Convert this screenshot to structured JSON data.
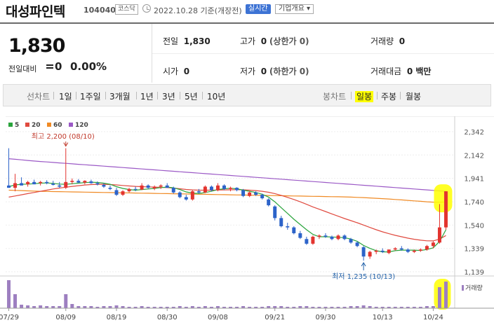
{
  "header": {
    "stock_name": "대성파인텍",
    "stock_code": "104040",
    "market": "코스닥",
    "date_text": "2022.10.28 기준(개장전)",
    "live_label": "실시간",
    "company_label": "기업개요 ▾"
  },
  "quote": {
    "price": "1,830",
    "compare_label": "전일대비",
    "compare_value": "0",
    "compare_pct": "0.00%"
  },
  "stats": {
    "prev_label": "전일",
    "prev_value": "1,830",
    "high_label": "고가",
    "high_value": "0",
    "high_note": "(상한가 0)",
    "volume_label": "거래량",
    "volume_value": "0",
    "open_label": "시가",
    "open_value": "0",
    "low_label": "저가",
    "low_value": "0",
    "low_note": "(하한가 0)",
    "amount_label": "거래대금",
    "amount_value": "0 백만"
  },
  "toolbar": {
    "line_chart_label": "선차트",
    "periods": [
      "1일",
      "1주일",
      "3개월",
      "1년",
      "3년",
      "5년",
      "10년"
    ],
    "candle_label": "봉차트",
    "candle_periods": [
      "일봉",
      "주봉",
      "월봉"
    ],
    "active_candle": "일봉"
  },
  "colors": {
    "up": "#e3342f",
    "down": "#2c63c9",
    "ma5": "#2aa43c",
    "ma20": "#e04a3f",
    "ma60": "#f08a24",
    "ma120": "#9b59c6",
    "highlight": "#ffff00",
    "volume": "#9d7fc0"
  },
  "chart_data": {
    "type": "candlestick",
    "legend": [
      "5",
      "20",
      "60",
      "120"
    ],
    "y_ticks": [
      "2,342",
      "2,142",
      "1,941",
      "1,740",
      "1,540",
      "1,339",
      "1,139"
    ],
    "x_ticks": [
      "07/29",
      "08/09",
      "08/19",
      "08/30",
      "09/08",
      "09/21",
      "09/30",
      "10/13",
      "10/24"
    ],
    "ylim": [
      1139,
      2342
    ],
    "high_annotation": "최고 2,200 (08/10)",
    "low_annotation": "최저 1,235 (10/13)",
    "volume_label": "거래량",
    "candles": [
      [
        1880,
        2200,
        1860,
        1860
      ],
      [
        1860,
        1980,
        1830,
        1900
      ],
      [
        1900,
        1950,
        1880,
        1880
      ],
      [
        1890,
        1920,
        1870,
        1910
      ],
      [
        1910,
        1930,
        1890,
        1890
      ],
      [
        1900,
        1920,
        1880,
        1910
      ],
      [
        1910,
        1925,
        1890,
        1900
      ],
      [
        1895,
        1920,
        1880,
        1885
      ],
      [
        1880,
        1910,
        1860,
        1870
      ],
      [
        1860,
        2200,
        1850,
        1910
      ],
      [
        1910,
        1940,
        1890,
        1920
      ],
      [
        1920,
        1935,
        1900,
        1905
      ],
      [
        1905,
        1925,
        1890,
        1920
      ],
      [
        1915,
        1930,
        1895,
        1900
      ],
      [
        1900,
        1915,
        1880,
        1890
      ],
      [
        1885,
        1900,
        1860,
        1870
      ],
      [
        1860,
        1880,
        1840,
        1850
      ],
      [
        1840,
        1860,
        1790,
        1800
      ],
      [
        1800,
        1840,
        1790,
        1830
      ],
      [
        1830,
        1860,
        1820,
        1850
      ],
      [
        1850,
        1870,
        1830,
        1845
      ],
      [
        1845,
        1900,
        1840,
        1880
      ],
      [
        1880,
        1890,
        1850,
        1860
      ],
      [
        1855,
        1880,
        1840,
        1870
      ],
      [
        1870,
        1890,
        1850,
        1880
      ],
      [
        1880,
        1900,
        1860,
        1860
      ],
      [
        1860,
        1870,
        1810,
        1820
      ],
      [
        1820,
        1830,
        1770,
        1780
      ],
      [
        1780,
        1800,
        1750,
        1760
      ],
      [
        1760,
        1840,
        1750,
        1830
      ],
      [
        1830,
        1850,
        1810,
        1820
      ],
      [
        1820,
        1880,
        1815,
        1870
      ],
      [
        1870,
        1880,
        1830,
        1840
      ],
      [
        1840,
        1900,
        1830,
        1880
      ],
      [
        1880,
        1890,
        1840,
        1850
      ],
      [
        1850,
        1870,
        1830,
        1860
      ],
      [
        1860,
        1865,
        1830,
        1840
      ],
      [
        1840,
        1850,
        1780,
        1790
      ],
      [
        1790,
        1830,
        1780,
        1820
      ],
      [
        1820,
        1830,
        1790,
        1800
      ],
      [
        1800,
        1810,
        1760,
        1770
      ],
      [
        1760,
        1770,
        1700,
        1710
      ],
      [
        1700,
        1710,
        1580,
        1600
      ],
      [
        1600,
        1620,
        1520,
        1530
      ],
      [
        1530,
        1560,
        1500,
        1520
      ],
      [
        1520,
        1530,
        1460,
        1470
      ],
      [
        1470,
        1490,
        1420,
        1430
      ],
      [
        1420,
        1440,
        1370,
        1380
      ],
      [
        1380,
        1450,
        1370,
        1440
      ],
      [
        1440,
        1460,
        1420,
        1450
      ],
      [
        1450,
        1470,
        1430,
        1440
      ],
      [
        1440,
        1450,
        1410,
        1420
      ],
      [
        1420,
        1460,
        1410,
        1450
      ],
      [
        1450,
        1460,
        1410,
        1420
      ],
      [
        1420,
        1430,
        1380,
        1390
      ],
      [
        1390,
        1400,
        1350,
        1360
      ],
      [
        1350,
        1360,
        1235,
        1270
      ],
      [
        1270,
        1320,
        1250,
        1310
      ],
      [
        1310,
        1330,
        1290,
        1320
      ],
      [
        1320,
        1340,
        1300,
        1310
      ],
      [
        1300,
        1330,
        1290,
        1330
      ],
      [
        1330,
        1350,
        1320,
        1340
      ],
      [
        1340,
        1360,
        1320,
        1330
      ],
      [
        1330,
        1340,
        1300,
        1310
      ],
      [
        1310,
        1330,
        1300,
        1320
      ],
      [
        1320,
        1340,
        1310,
        1330
      ],
      [
        1330,
        1370,
        1320,
        1360
      ],
      [
        1360,
        1400,
        1340,
        1390
      ],
      [
        1390,
        1720,
        1380,
        1520
      ],
      [
        1520,
        1830,
        1500,
        1830
      ]
    ],
    "ma5": [
      1870,
      1885,
      1890,
      1892,
      1895,
      1900,
      1902,
      1898,
      1892,
      1890,
      1895,
      1900,
      1905,
      1908,
      1906,
      1900,
      1890,
      1870,
      1855,
      1845,
      1840,
      1845,
      1850,
      1855,
      1862,
      1866,
      1860,
      1845,
      1825,
      1815,
      1810,
      1820,
      1830,
      1845,
      1852,
      1856,
      1852,
      1840,
      1830,
      1820,
      1805,
      1780,
      1740,
      1690,
      1640,
      1590,
      1545,
      1500,
      1460,
      1440,
      1440,
      1438,
      1435,
      1432,
      1420,
      1400,
      1365,
      1340,
      1320,
      1310,
      1310,
      1320,
      1325,
      1325,
      1325,
      1322,
      1330,
      1345,
      1400,
      1500
    ],
    "ma20": [
      1780,
      1790,
      1800,
      1810,
      1820,
      1830,
      1840,
      1850,
      1858,
      1865,
      1872,
      1878,
      1884,
      1888,
      1890,
      1890,
      1888,
      1885,
      1880,
      1876,
      1872,
      1870,
      1868,
      1866,
      1864,
      1862,
      1858,
      1852,
      1846,
      1842,
      1840,
      1840,
      1840,
      1841,
      1842,
      1843,
      1844,
      1843,
      1840,
      1836,
      1830,
      1822,
      1810,
      1795,
      1778,
      1760,
      1740,
      1718,
      1696,
      1676,
      1656,
      1636,
      1616,
      1596,
      1578,
      1560,
      1540,
      1520,
      1500,
      1482,
      1466,
      1452,
      1440,
      1428,
      1418,
      1410,
      1405,
      1404,
      1420,
      1450
    ],
    "ma60": [
      1840,
      1838,
      1836,
      1834,
      1832,
      1830,
      1829,
      1828,
      1827,
      1826,
      1825,
      1824,
      1823,
      1822,
      1821,
      1820,
      1819,
      1818,
      1817,
      1816,
      1815,
      1814,
      1813,
      1812,
      1811,
      1810,
      1809,
      1808,
      1807,
      1806,
      1805,
      1804,
      1803,
      1802,
      1801,
      1800,
      1799,
      1798,
      1797,
      1796,
      1795,
      1794,
      1793,
      1792,
      1791,
      1790,
      1789,
      1788,
      1787,
      1786,
      1785,
      1784,
      1783,
      1782,
      1780,
      1778,
      1776,
      1773,
      1770,
      1767,
      1764,
      1760,
      1756,
      1752,
      1748,
      1744,
      1740,
      1737,
      1736,
      1738
    ],
    "ma120": [
      2110,
      2105,
      2100,
      2095,
      2090,
      2086,
      2082,
      2078,
      2074,
      2070,
      2066,
      2062,
      2058,
      2054,
      2050,
      2046,
      2042,
      2038,
      2034,
      2030,
      2026,
      2022,
      2018,
      2014,
      2010,
      2006,
      2002,
      1998,
      1994,
      1990,
      1986,
      1982,
      1978,
      1974,
      1970,
      1966,
      1962,
      1958,
      1954,
      1950,
      1946,
      1942,
      1938,
      1934,
      1930,
      1926,
      1922,
      1918,
      1914,
      1910,
      1906,
      1902,
      1898,
      1894,
      1890,
      1886,
      1882,
      1878,
      1874,
      1870,
      1866,
      1862,
      1858,
      1854,
      1850,
      1846,
      1842,
      1838,
      1834,
      1830
    ],
    "volume": [
      40,
      20,
      5,
      4,
      3,
      4,
      3,
      3,
      3,
      20,
      6,
      3,
      3,
      3,
      2,
      3,
      3,
      4,
      3,
      2,
      2,
      3,
      2,
      2,
      2,
      2,
      2,
      3,
      2,
      3,
      2,
      3,
      2,
      3,
      2,
      2,
      2,
      3,
      2,
      2,
      2,
      3,
      3,
      3,
      2,
      2,
      3,
      3,
      2,
      2,
      2,
      2,
      2,
      2,
      3,
      3,
      4,
      3,
      2,
      2,
      2,
      2,
      2,
      2,
      2,
      2,
      3,
      3,
      30,
      38
    ]
  }
}
